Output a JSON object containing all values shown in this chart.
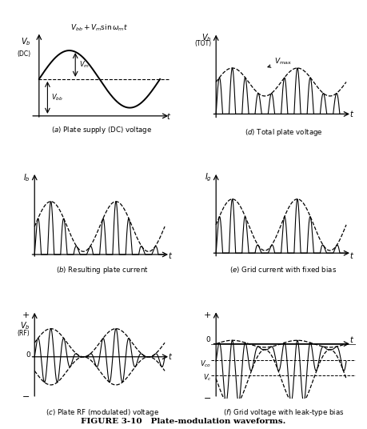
{
  "title": "FIGURE 3-10   Plate-modulation waveforms.",
  "background_color": "#ffffff",
  "figsize": [
    4.59,
    5.36
  ],
  "dpi": 100,
  "carrier_cycles_per_mod": 5,
  "mod_periods": 2,
  "Vbb": 0.45,
  "Vm": 0.35,
  "subplot_labels": [
    "(a) Plate supply (DC) voltage",
    "(d) Total plate voltage",
    "(b) Resulting plate current",
    "(e) Grid current with fixed bias",
    "(c) Plate RF (modulated) voltage",
    "(f) Grid voltage with leak-type bias"
  ]
}
